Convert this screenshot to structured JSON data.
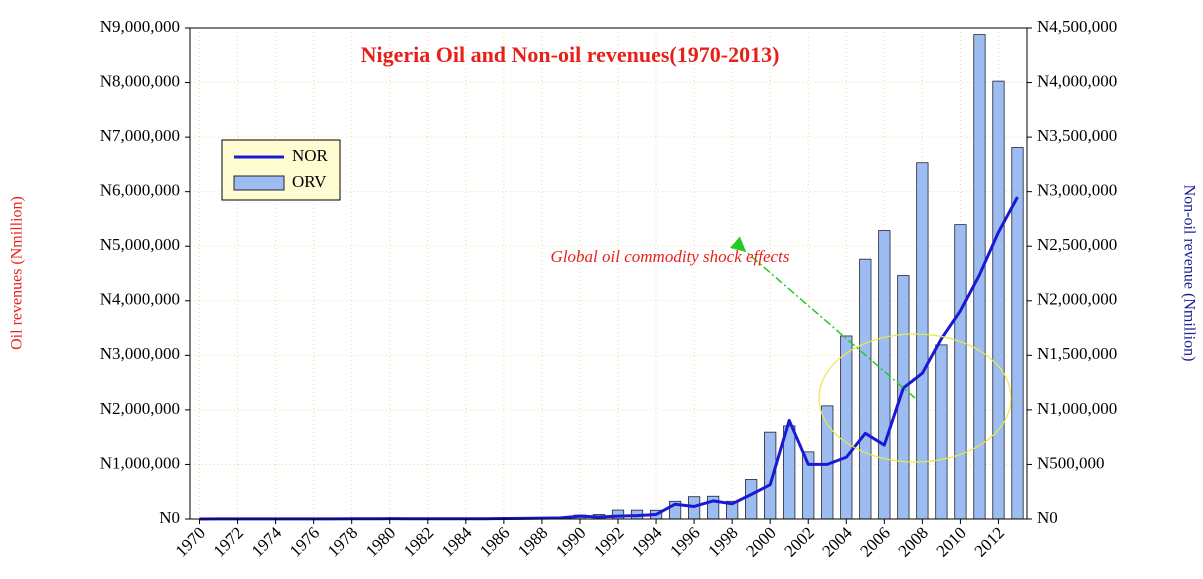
{
  "chart_data": {
    "type": "bar",
    "title": "Nigeria Oil and Non-oil revenues(1970-2013)",
    "ylabel": "Oil revenues (Nmillion)",
    "y2label": "Non-oil revenue (Nmillion)",
    "annotation": "Global oil commodity shock effects",
    "categories": [
      "1970",
      null,
      "1972",
      null,
      "1974",
      null,
      "1976",
      null,
      "1978",
      null,
      "1980",
      null,
      "1982",
      null,
      "1984",
      null,
      "1986",
      null,
      "1988",
      null,
      "1990",
      null,
      "1992",
      null,
      "1994",
      null,
      "1996",
      null,
      "1998",
      null,
      "2000",
      null,
      "2002",
      null,
      "2004",
      null,
      "2006",
      null,
      "2008",
      null,
      "2010",
      null,
      "2012",
      null
    ],
    "series": [
      {
        "name": "NOR",
        "type": "line",
        "axis": "y2",
        "color": "#1a1ad6",
        "values": [
          467,
          653,
          641,
          1035,
          1352,
          1244,
          1400,
          1600,
          2000,
          1800,
          2900,
          2400,
          2100,
          2100,
          2000,
          2400,
          4300,
          6100,
          7800,
          10000,
          26215,
          18325,
          26375,
          30667,
          41718,
          135439,
          114814,
          166000,
          139298,
          224765,
          314484,
          903460,
          500986,
          500815,
          565700,
          785100,
          677540,
          1200800,
          1336000,
          1652650,
          1907580,
          2237880,
          2628780,
          2950560
        ]
      },
      {
        "name": "ORV",
        "type": "bar",
        "color": "#9dbdf2",
        "values": [
          166,
          510,
          764,
          1016,
          4185,
          4272,
          5365,
          6081,
          4556,
          8881,
          12353,
          8564,
          7815,
          7253,
          8269,
          10924,
          8107,
          19027,
          19832,
          39131,
          71887,
          82666,
          164078,
          162102,
          160192,
          324548,
          408783,
          416811,
          324311,
          724423,
          1591676,
          1707563,
          1230851,
          2074281,
          3354800,
          4762400,
          5287567,
          4462910,
          6530600,
          3191900,
          5396091,
          8878970,
          8025970,
          6809230
        ]
      }
    ],
    "ylim": [
      0,
      9000000
    ],
    "yticks": [
      {
        "value": 0,
        "label": "N0"
      },
      {
        "value": 1000000,
        "label": "N1,000,000"
      },
      {
        "value": 2000000,
        "label": "N2,000,000"
      },
      {
        "value": 3000000,
        "label": "N3,000,000"
      },
      {
        "value": 4000000,
        "label": "N4,000,000"
      },
      {
        "value": 5000000,
        "label": "N5,000,000"
      },
      {
        "value": 6000000,
        "label": "N6,000,000"
      },
      {
        "value": 7000000,
        "label": "N7,000,000"
      },
      {
        "value": 8000000,
        "label": "N8,000,000"
      },
      {
        "value": 9000000,
        "label": "N9,000,000"
      }
    ],
    "y2lim": [
      0,
      4500000
    ],
    "y2ticks": [
      {
        "value": 0,
        "label": "N0"
      },
      {
        "value": 500000,
        "label": "N500,000"
      },
      {
        "value": 1000000,
        "label": "N1,000,000"
      },
      {
        "value": 1500000,
        "label": "N1,500,000"
      },
      {
        "value": 2000000,
        "label": "N2,000,000"
      },
      {
        "value": 2500000,
        "label": "N2,500,000"
      },
      {
        "value": 3000000,
        "label": "N3,000,000"
      },
      {
        "value": 3500000,
        "label": "N3,500,000"
      },
      {
        "value": 4000000,
        "label": "N4,000,000"
      },
      {
        "value": 4500000,
        "label": "N4,500,000"
      }
    ],
    "grid": true
  }
}
